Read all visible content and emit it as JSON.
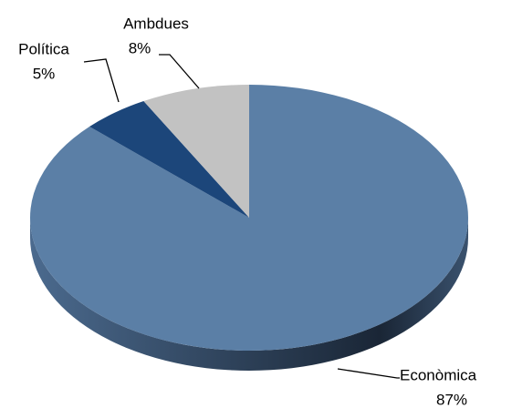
{
  "chart_data": {
    "type": "pie",
    "categories": [
      "Econòmica",
      "Política",
      "Ambdues"
    ],
    "values": [
      87,
      5,
      8
    ],
    "value_labels": [
      "87%",
      "5%",
      "8%"
    ],
    "colors": [
      "#5b7fa6",
      "#1c467a",
      "#c2c2c2"
    ]
  }
}
